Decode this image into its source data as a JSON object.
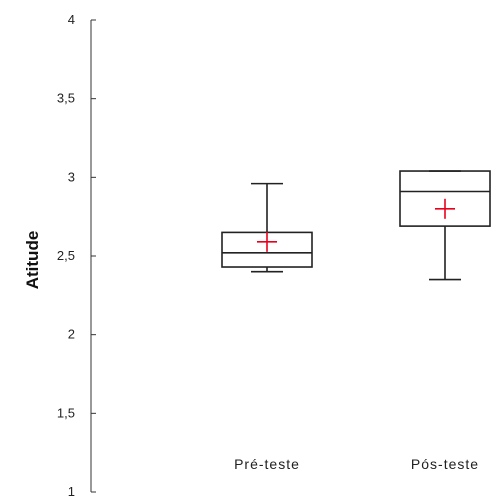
{
  "chart_data": {
    "type": "box",
    "ylabel": "Atitude",
    "ylim": [
      1,
      4
    ],
    "yticks": [
      {
        "value": 1,
        "label": "1"
      },
      {
        "value": 1.5,
        "label": "1,5"
      },
      {
        "value": 2,
        "label": "2"
      },
      {
        "value": 2.5,
        "label": "2,5"
      },
      {
        "value": 3,
        "label": "3"
      },
      {
        "value": 3.5,
        "label": "3,5"
      },
      {
        "value": 4,
        "label": "4"
      }
    ],
    "categories": [
      "Pré-teste",
      "Pós-teste"
    ],
    "boxes": [
      {
        "category": "Pré-teste",
        "whisker_low": 2.4,
        "q1": 2.43,
        "median": 2.52,
        "q3": 2.65,
        "whisker_high": 2.96,
        "mean": 2.59
      },
      {
        "category": "Pós-teste",
        "whisker_low": 2.35,
        "q1": 2.69,
        "median": 2.91,
        "q3": 3.04,
        "whisker_high": 3.04,
        "mean": 2.8
      }
    ],
    "mean_marker_color": "#e8001c",
    "box_color": "#222222"
  }
}
